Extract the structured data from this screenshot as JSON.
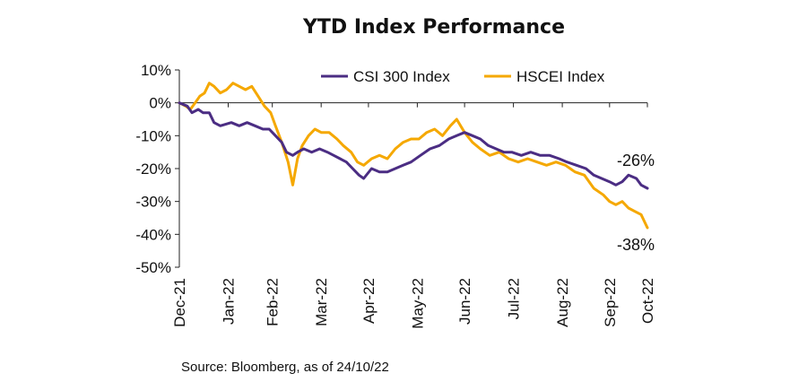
{
  "chart_data": {
    "type": "line",
    "title": "YTD Index Performance",
    "source": "Source: Bloomberg, as of 24/10/22",
    "xlabel": "",
    "ylabel": "",
    "x_ticks": [
      "Dec-21",
      "Jan-22",
      "Feb-22",
      "Mar-22",
      "Apr-22",
      "May-22",
      "Jun-22",
      "Jul-22",
      "Aug-22",
      "Sep-22",
      "Oct-22"
    ],
    "y_ticks": [
      "10%",
      "0%",
      "-10%",
      "-20%",
      "-30%",
      "-40%",
      "-50%"
    ],
    "ylim": [
      -50,
      10
    ],
    "xlim": [
      "2021-12-31",
      "2022-10-24"
    ],
    "grid": false,
    "legend_position": "top",
    "annotations": [
      {
        "label": "-26%",
        "series": "CSI 300 Index"
      },
      {
        "label": "-38%",
        "series": "HSCEI Index"
      }
    ],
    "series": [
      {
        "name": "CSI 300 Index",
        "color": "#4B2D83",
        "points": [
          [
            "2021-12-31",
            0
          ],
          [
            "2022-01-05",
            -1
          ],
          [
            "2022-01-08",
            -3
          ],
          [
            "2022-01-12",
            -2
          ],
          [
            "2022-01-15",
            -3
          ],
          [
            "2022-01-19",
            -3
          ],
          [
            "2022-01-22",
            -6
          ],
          [
            "2022-01-26",
            -7
          ],
          [
            "2022-02-02",
            -6
          ],
          [
            "2022-02-07",
            -7
          ],
          [
            "2022-02-12",
            -6
          ],
          [
            "2022-02-17",
            -7
          ],
          [
            "2022-02-22",
            -8
          ],
          [
            "2022-02-26",
            -8
          ],
          [
            "2022-03-02",
            -10
          ],
          [
            "2022-03-06",
            -12
          ],
          [
            "2022-03-09",
            -15
          ],
          [
            "2022-03-13",
            -16
          ],
          [
            "2022-03-16",
            -15
          ],
          [
            "2022-03-20",
            -14
          ],
          [
            "2022-03-25",
            -15
          ],
          [
            "2022-03-30",
            -14
          ],
          [
            "2022-04-04",
            -15
          ],
          [
            "2022-04-08",
            -16
          ],
          [
            "2022-04-12",
            -17
          ],
          [
            "2022-04-16",
            -18
          ],
          [
            "2022-04-20",
            -20
          ],
          [
            "2022-04-24",
            -22
          ],
          [
            "2022-04-27",
            -23
          ],
          [
            "2022-05-02",
            -20
          ],
          [
            "2022-05-07",
            -21
          ],
          [
            "2022-05-12",
            -21
          ],
          [
            "2022-05-17",
            -20
          ],
          [
            "2022-05-22",
            -19
          ],
          [
            "2022-05-27",
            -18
          ],
          [
            "2022-06-02",
            -16
          ],
          [
            "2022-06-08",
            -14
          ],
          [
            "2022-06-14",
            -13
          ],
          [
            "2022-06-20",
            -11
          ],
          [
            "2022-06-25",
            -10
          ],
          [
            "2022-06-30",
            -9
          ],
          [
            "2022-07-05",
            -10
          ],
          [
            "2022-07-10",
            -11
          ],
          [
            "2022-07-15",
            -13
          ],
          [
            "2022-07-20",
            -14
          ],
          [
            "2022-07-25",
            -15
          ],
          [
            "2022-07-30",
            -15
          ],
          [
            "2022-08-05",
            -16
          ],
          [
            "2022-08-11",
            -15
          ],
          [
            "2022-08-17",
            -16
          ],
          [
            "2022-08-23",
            -16
          ],
          [
            "2022-08-29",
            -17
          ],
          [
            "2022-09-03",
            -18
          ],
          [
            "2022-09-09",
            -19
          ],
          [
            "2022-09-15",
            -20
          ],
          [
            "2022-09-20",
            -22
          ],
          [
            "2022-09-25",
            -23
          ],
          [
            "2022-09-30",
            -24
          ],
          [
            "2022-10-04",
            -25
          ],
          [
            "2022-10-08",
            -24
          ],
          [
            "2022-10-12",
            -22
          ],
          [
            "2022-10-17",
            -23
          ],
          [
            "2022-10-20",
            -25
          ],
          [
            "2022-10-24",
            -26
          ]
        ]
      },
      {
        "name": "HSCEI Index",
        "color": "#F5A800",
        "points": [
          [
            "2021-12-31",
            0
          ],
          [
            "2022-01-04",
            -1
          ],
          [
            "2022-01-07",
            -2
          ],
          [
            "2022-01-10",
            0
          ],
          [
            "2022-01-13",
            2
          ],
          [
            "2022-01-16",
            3
          ],
          [
            "2022-01-19",
            6
          ],
          [
            "2022-01-22",
            5
          ],
          [
            "2022-01-26",
            3
          ],
          [
            "2022-01-30",
            4
          ],
          [
            "2022-02-03",
            6
          ],
          [
            "2022-02-07",
            5
          ],
          [
            "2022-02-11",
            4
          ],
          [
            "2022-02-15",
            5
          ],
          [
            "2022-02-19",
            2
          ],
          [
            "2022-02-23",
            -1
          ],
          [
            "2022-02-27",
            -3
          ],
          [
            "2022-03-02",
            -7
          ],
          [
            "2022-03-06",
            -12
          ],
          [
            "2022-03-10",
            -18
          ],
          [
            "2022-03-13",
            -25
          ],
          [
            "2022-03-16",
            -17
          ],
          [
            "2022-03-19",
            -13
          ],
          [
            "2022-03-23",
            -10
          ],
          [
            "2022-03-27",
            -8
          ],
          [
            "2022-03-31",
            -9
          ],
          [
            "2022-04-05",
            -9
          ],
          [
            "2022-04-10",
            -11
          ],
          [
            "2022-04-14",
            -13
          ],
          [
            "2022-04-19",
            -15
          ],
          [
            "2022-04-23",
            -18
          ],
          [
            "2022-04-27",
            -19
          ],
          [
            "2022-05-02",
            -17
          ],
          [
            "2022-05-07",
            -16
          ],
          [
            "2022-05-12",
            -17
          ],
          [
            "2022-05-17",
            -14
          ],
          [
            "2022-05-22",
            -12
          ],
          [
            "2022-05-27",
            -11
          ],
          [
            "2022-06-01",
            -11
          ],
          [
            "2022-06-06",
            -9
          ],
          [
            "2022-06-11",
            -8
          ],
          [
            "2022-06-16",
            -10
          ],
          [
            "2022-06-21",
            -7
          ],
          [
            "2022-06-25",
            -5
          ],
          [
            "2022-06-30",
            -9
          ],
          [
            "2022-07-05",
            -12
          ],
          [
            "2022-07-10",
            -14
          ],
          [
            "2022-07-16",
            -16
          ],
          [
            "2022-07-22",
            -15
          ],
          [
            "2022-07-28",
            -17
          ],
          [
            "2022-08-03",
            -18
          ],
          [
            "2022-08-09",
            -17
          ],
          [
            "2022-08-15",
            -18
          ],
          [
            "2022-08-21",
            -19
          ],
          [
            "2022-08-27",
            -18
          ],
          [
            "2022-09-02",
            -19
          ],
          [
            "2022-09-08",
            -21
          ],
          [
            "2022-09-14",
            -22
          ],
          [
            "2022-09-20",
            -26
          ],
          [
            "2022-09-26",
            -28
          ],
          [
            "2022-09-30",
            -30
          ],
          [
            "2022-10-04",
            -31
          ],
          [
            "2022-10-08",
            -30
          ],
          [
            "2022-10-12",
            -32
          ],
          [
            "2022-10-16",
            -33
          ],
          [
            "2022-10-20",
            -34
          ],
          [
            "2022-10-24",
            -38
          ]
        ]
      }
    ]
  }
}
